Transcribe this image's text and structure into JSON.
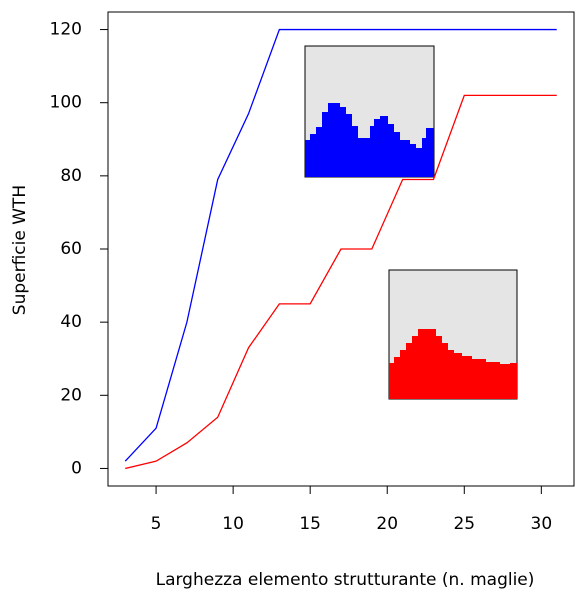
{
  "chart_data": {
    "type": "line",
    "xlabel": "Larghezza elemento strutturante (n. maglie)",
    "ylabel": "Superficie WTH",
    "x": [
      3,
      5,
      7,
      9,
      11,
      13,
      15,
      17,
      19,
      21,
      23,
      25,
      27,
      29,
      31
    ],
    "series": [
      {
        "color": "#0000ff",
        "values": [
          2,
          11,
          40,
          79,
          97,
          120,
          120,
          120,
          120,
          120,
          120,
          120,
          120,
          120,
          120
        ]
      },
      {
        "color": "#ff0000",
        "values": [
          0,
          2,
          7,
          14,
          33,
          45,
          45,
          60,
          60,
          79,
          79,
          102,
          102,
          102,
          102
        ]
      }
    ],
    "xlim": [
      1.88,
      32.12
    ],
    "ylim": [
      -4.8,
      124.8
    ],
    "xticks": [
      5,
      10,
      15,
      20,
      25,
      30
    ],
    "yticks": [
      0,
      20,
      40,
      60,
      80,
      100,
      120
    ]
  }
}
